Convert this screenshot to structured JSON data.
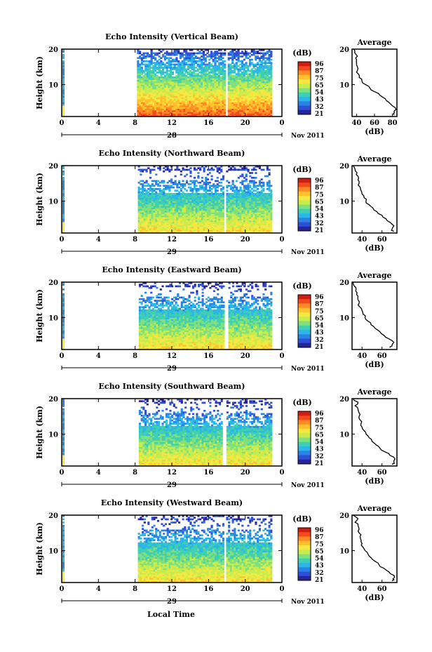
{
  "figure": {
    "xlabel": "Local Time",
    "date_label": "Nov 2011"
  },
  "chart_data": [
    {
      "type": "heatmap",
      "title": "Echo Intensity (Vertical Beam)",
      "ylabel": "Height (km)",
      "xlabel": "Local Time",
      "x_ticks": [
        "0",
        "4",
        "8",
        "12",
        "16",
        "20",
        "0"
      ],
      "y_ticks": [
        "10",
        "20"
      ],
      "xlim": [
        0,
        24
      ],
      "ylim": [
        1,
        20
      ],
      "day_label": "28",
      "colorbar": {
        "label": "(dB)",
        "ticks": [
          "96",
          "87",
          "75",
          "65",
          "54",
          "43",
          "32",
          "21"
        ]
      },
      "data_start_hour": 8.2,
      "gap_hour": 18.0,
      "profile": {
        "title": "Average",
        "xlabel": "(dB)",
        "x_ticks": [
          "40",
          "60",
          "80"
        ],
        "xlim": [
          35,
          85
        ],
        "y_ticks": [
          "10",
          "20"
        ],
        "heights": [
          1.5,
          2,
          3,
          4,
          5,
          6,
          7,
          8,
          9,
          10,
          11,
          12,
          13,
          14,
          15,
          16,
          17,
          18,
          19,
          20
        ],
        "values": [
          82,
          82,
          84,
          80,
          76,
          72,
          66,
          60,
          55,
          50,
          46,
          43,
          42,
          41,
          41,
          40,
          40,
          41,
          38,
          37
        ]
      }
    },
    {
      "type": "heatmap",
      "title": "Echo Intensity (Northward Beam)",
      "ylabel": "Height (km)",
      "xlabel": "Local Time",
      "x_ticks": [
        "0",
        "4",
        "8",
        "12",
        "16",
        "20",
        "0"
      ],
      "y_ticks": [
        "10",
        "20"
      ],
      "xlim": [
        0,
        24
      ],
      "ylim": [
        1,
        20
      ],
      "day_label": "29",
      "colorbar": {
        "label": "(dB)",
        "ticks": [
          "96",
          "87",
          "75",
          "65",
          "54",
          "43",
          "32",
          "21"
        ]
      },
      "data_start_hour": 8.3,
      "gap_hour": 17.8,
      "profile": {
        "title": "Average",
        "xlabel": "(dB)",
        "x_ticks": [
          "40",
          "60"
        ],
        "xlim": [
          30,
          75
        ],
        "y_ticks": [
          "10",
          "20"
        ],
        "heights": [
          1.5,
          2,
          3,
          4,
          5,
          6,
          7,
          8,
          9,
          10,
          11,
          12,
          13,
          14,
          15,
          16,
          17,
          18,
          19,
          20
        ],
        "values": [
          72,
          70,
          72,
          68,
          64,
          60,
          55,
          51,
          47,
          44,
          42,
          40,
          39,
          38,
          37,
          36,
          36,
          35,
          33,
          31
        ]
      }
    },
    {
      "type": "heatmap",
      "title": "Echo Intensity (Eastward Beam)",
      "ylabel": "Height (km)",
      "xlabel": "Local Time",
      "x_ticks": [
        "0",
        "4",
        "8",
        "12",
        "16",
        "20",
        "0"
      ],
      "y_ticks": [
        "10",
        "20"
      ],
      "xlim": [
        0,
        24
      ],
      "ylim": [
        1,
        20
      ],
      "day_label": "29",
      "colorbar": {
        "label": "(dB)",
        "ticks": [
          "96",
          "87",
          "75",
          "65",
          "54",
          "43",
          "32",
          "21"
        ]
      },
      "data_start_hour": 8.4,
      "gap_hour": 17.9,
      "profile": {
        "title": "Average",
        "xlabel": "(dB)",
        "x_ticks": [
          "40",
          "60"
        ],
        "xlim": [
          30,
          75
        ],
        "y_ticks": [
          "10",
          "20"
        ],
        "heights": [
          1.5,
          2,
          3,
          4,
          5,
          6,
          7,
          8,
          9,
          10,
          11,
          12,
          13,
          14,
          15,
          16,
          17,
          18,
          19,
          20
        ],
        "values": [
          68,
          70,
          72,
          67,
          62,
          58,
          53,
          49,
          46,
          43,
          41,
          40,
          38,
          37,
          36,
          36,
          35,
          34,
          32,
          31
        ]
      }
    },
    {
      "type": "heatmap",
      "title": "Echo Intensity (Southward Beam)",
      "ylabel": "Height (km)",
      "xlabel": "Local Time",
      "x_ticks": [
        "0",
        "4",
        "8",
        "12",
        "16",
        "20",
        "0"
      ],
      "y_ticks": [
        "10",
        "20"
      ],
      "xlim": [
        0,
        24
      ],
      "ylim": [
        1,
        20
      ],
      "day_label": "29",
      "colorbar": {
        "label": "(dB)",
        "ticks": [
          "96",
          "87",
          "75",
          "65",
          "54",
          "43",
          "32",
          "21"
        ]
      },
      "data_start_hour": 8.4,
      "gap_hour": 17.8,
      "profile": {
        "title": "Average",
        "xlabel": "(dB)",
        "x_ticks": [
          "40",
          "60"
        ],
        "xlim": [
          30,
          75
        ],
        "y_ticks": [
          "10",
          "20"
        ],
        "heights": [
          1.5,
          2,
          3,
          4,
          5,
          6,
          7,
          8,
          9,
          10,
          11,
          12,
          13,
          14,
          15,
          16,
          17,
          18,
          19,
          20
        ],
        "values": [
          70,
          72,
          73,
          68,
          63,
          58,
          54,
          50,
          47,
          44,
          42,
          40,
          39,
          38,
          37,
          37,
          36,
          33,
          36,
          31
        ]
      }
    },
    {
      "type": "heatmap",
      "title": "Echo Intensity (Westward Beam)",
      "ylabel": "Height (km)",
      "xlabel": "Local Time",
      "x_ticks": [
        "0",
        "4",
        "8",
        "12",
        "16",
        "20",
        "0"
      ],
      "y_ticks": [
        "10",
        "20"
      ],
      "xlim": [
        0,
        24
      ],
      "ylim": [
        1,
        20
      ],
      "day_label": "29",
      "colorbar": {
        "label": "(dB)",
        "ticks": [
          "96",
          "87",
          "75",
          "65",
          "54",
          "43",
          "32",
          "21"
        ]
      },
      "data_start_hour": 8.3,
      "gap_hour": 17.8,
      "profile": {
        "title": "Average",
        "xlabel": "(dB)",
        "x_ticks": [
          "40",
          "60"
        ],
        "xlim": [
          30,
          75
        ],
        "y_ticks": [
          "10",
          "20"
        ],
        "heights": [
          1.5,
          2,
          3,
          4,
          5,
          6,
          7,
          8,
          9,
          10,
          11,
          12,
          13,
          14,
          15,
          16,
          17,
          18,
          19,
          20
        ],
        "values": [
          70,
          71,
          72,
          67,
          62,
          57,
          53,
          49,
          46,
          43,
          41,
          40,
          39,
          38,
          37,
          37,
          36,
          33,
          36,
          31
        ]
      }
    }
  ]
}
